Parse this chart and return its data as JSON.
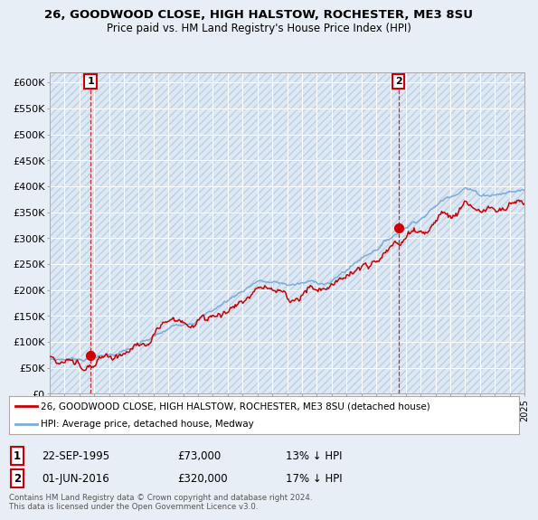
{
  "title_line1": "26, GOODWOOD CLOSE, HIGH HALSTOW, ROCHESTER, ME3 8SU",
  "title_line2": "Price paid vs. HM Land Registry's House Price Index (HPI)",
  "ylim": [
    0,
    620000
  ],
  "yticks": [
    0,
    50000,
    100000,
    150000,
    200000,
    250000,
    300000,
    350000,
    400000,
    450000,
    500000,
    550000,
    600000
  ],
  "ytick_labels": [
    "£0",
    "£50K",
    "£100K",
    "£150K",
    "£200K",
    "£250K",
    "£300K",
    "£350K",
    "£400K",
    "£450K",
    "£500K",
    "£550K",
    "£600K"
  ],
  "background_color": "#e8eef5",
  "plot_bg_color": "#dce8f5",
  "hpi_color": "#7aadda",
  "price_color": "#cc0000",
  "legend_price_label": "26, GOODWOOD CLOSE, HIGH HALSTOW, ROCHESTER, ME3 8SU (detached house)",
  "legend_hpi_label": "HPI: Average price, detached house, Medway",
  "annotation1_date": "22-SEP-1995",
  "annotation1_price": "£73,000",
  "annotation1_hpi": "13% ↓ HPI",
  "annotation2_date": "01-JUN-2016",
  "annotation2_price": "£320,000",
  "annotation2_hpi": "17% ↓ HPI",
  "footer": "Contains HM Land Registry data © Crown copyright and database right 2024.\nThis data is licensed under the Open Government Licence v3.0.",
  "sale1_x": 1995.75,
  "sale1_y": 73000,
  "sale2_x": 2016.5,
  "sale2_y": 320000,
  "xmin": 1993,
  "xmax": 2025
}
